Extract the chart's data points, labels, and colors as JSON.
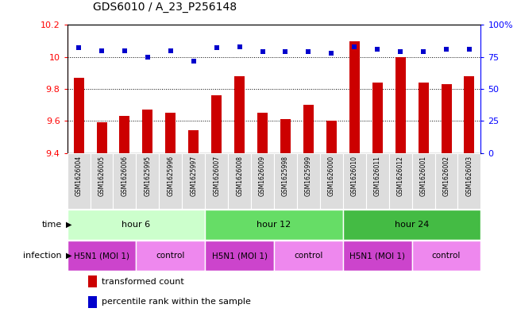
{
  "title": "GDS6010 / A_23_P256148",
  "samples": [
    "GSM1626004",
    "GSM1626005",
    "GSM1626006",
    "GSM1625995",
    "GSM1625996",
    "GSM1625997",
    "GSM1626007",
    "GSM1626008",
    "GSM1626009",
    "GSM1625998",
    "GSM1625999",
    "GSM1626000",
    "GSM1626010",
    "GSM1626011",
    "GSM1626012",
    "GSM1626001",
    "GSM1626002",
    "GSM1626003"
  ],
  "transformed_count": [
    9.87,
    9.59,
    9.63,
    9.67,
    9.65,
    9.54,
    9.76,
    9.88,
    9.65,
    9.61,
    9.7,
    9.6,
    10.1,
    9.84,
    10.0,
    9.84,
    9.83,
    9.88
  ],
  "percentile_rank": [
    82,
    80,
    80,
    75,
    80,
    72,
    82,
    83,
    79,
    79,
    79,
    78,
    83,
    81,
    79,
    79,
    81,
    81
  ],
  "ylim_left": [
    9.4,
    10.2
  ],
  "ylim_right": [
    0,
    100
  ],
  "yticks_left": [
    9.4,
    9.6,
    9.8,
    10.0,
    10.2
  ],
  "yticks_right": [
    0,
    25,
    50,
    75,
    100
  ],
  "ytick_labels_right": [
    "0",
    "25",
    "50",
    "75",
    "100%"
  ],
  "bar_color": "#cc0000",
  "dot_color": "#0000cc",
  "bar_bottom": 9.4,
  "time_groups": [
    {
      "label": "hour 6",
      "start": 0,
      "end": 6,
      "color": "#ccffcc"
    },
    {
      "label": "hour 12",
      "start": 6,
      "end": 12,
      "color": "#66dd66"
    },
    {
      "label": "hour 24",
      "start": 12,
      "end": 18,
      "color": "#44bb44"
    }
  ],
  "infection_groups": [
    {
      "label": "H5N1 (MOI 1)",
      "start": 0,
      "end": 3,
      "color": "#cc44cc"
    },
    {
      "label": "control",
      "start": 3,
      "end": 6,
      "color": "#ee88ee"
    },
    {
      "label": "H5N1 (MOI 1)",
      "start": 6,
      "end": 9,
      "color": "#cc44cc"
    },
    {
      "label": "control",
      "start": 9,
      "end": 12,
      "color": "#ee88ee"
    },
    {
      "label": "H5N1 (MOI 1)",
      "start": 12,
      "end": 15,
      "color": "#cc44cc"
    },
    {
      "label": "control",
      "start": 15,
      "end": 18,
      "color": "#ee88ee"
    }
  ],
  "legend_bar_label": "transformed count",
  "legend_dot_label": "percentile rank within the sample",
  "time_label": "time",
  "infection_label": "infection",
  "background_color": "#ffffff",
  "sample_box_color": "#dddddd",
  "title_fontsize": 10,
  "axis_fontsize": 8,
  "label_fontsize": 8
}
